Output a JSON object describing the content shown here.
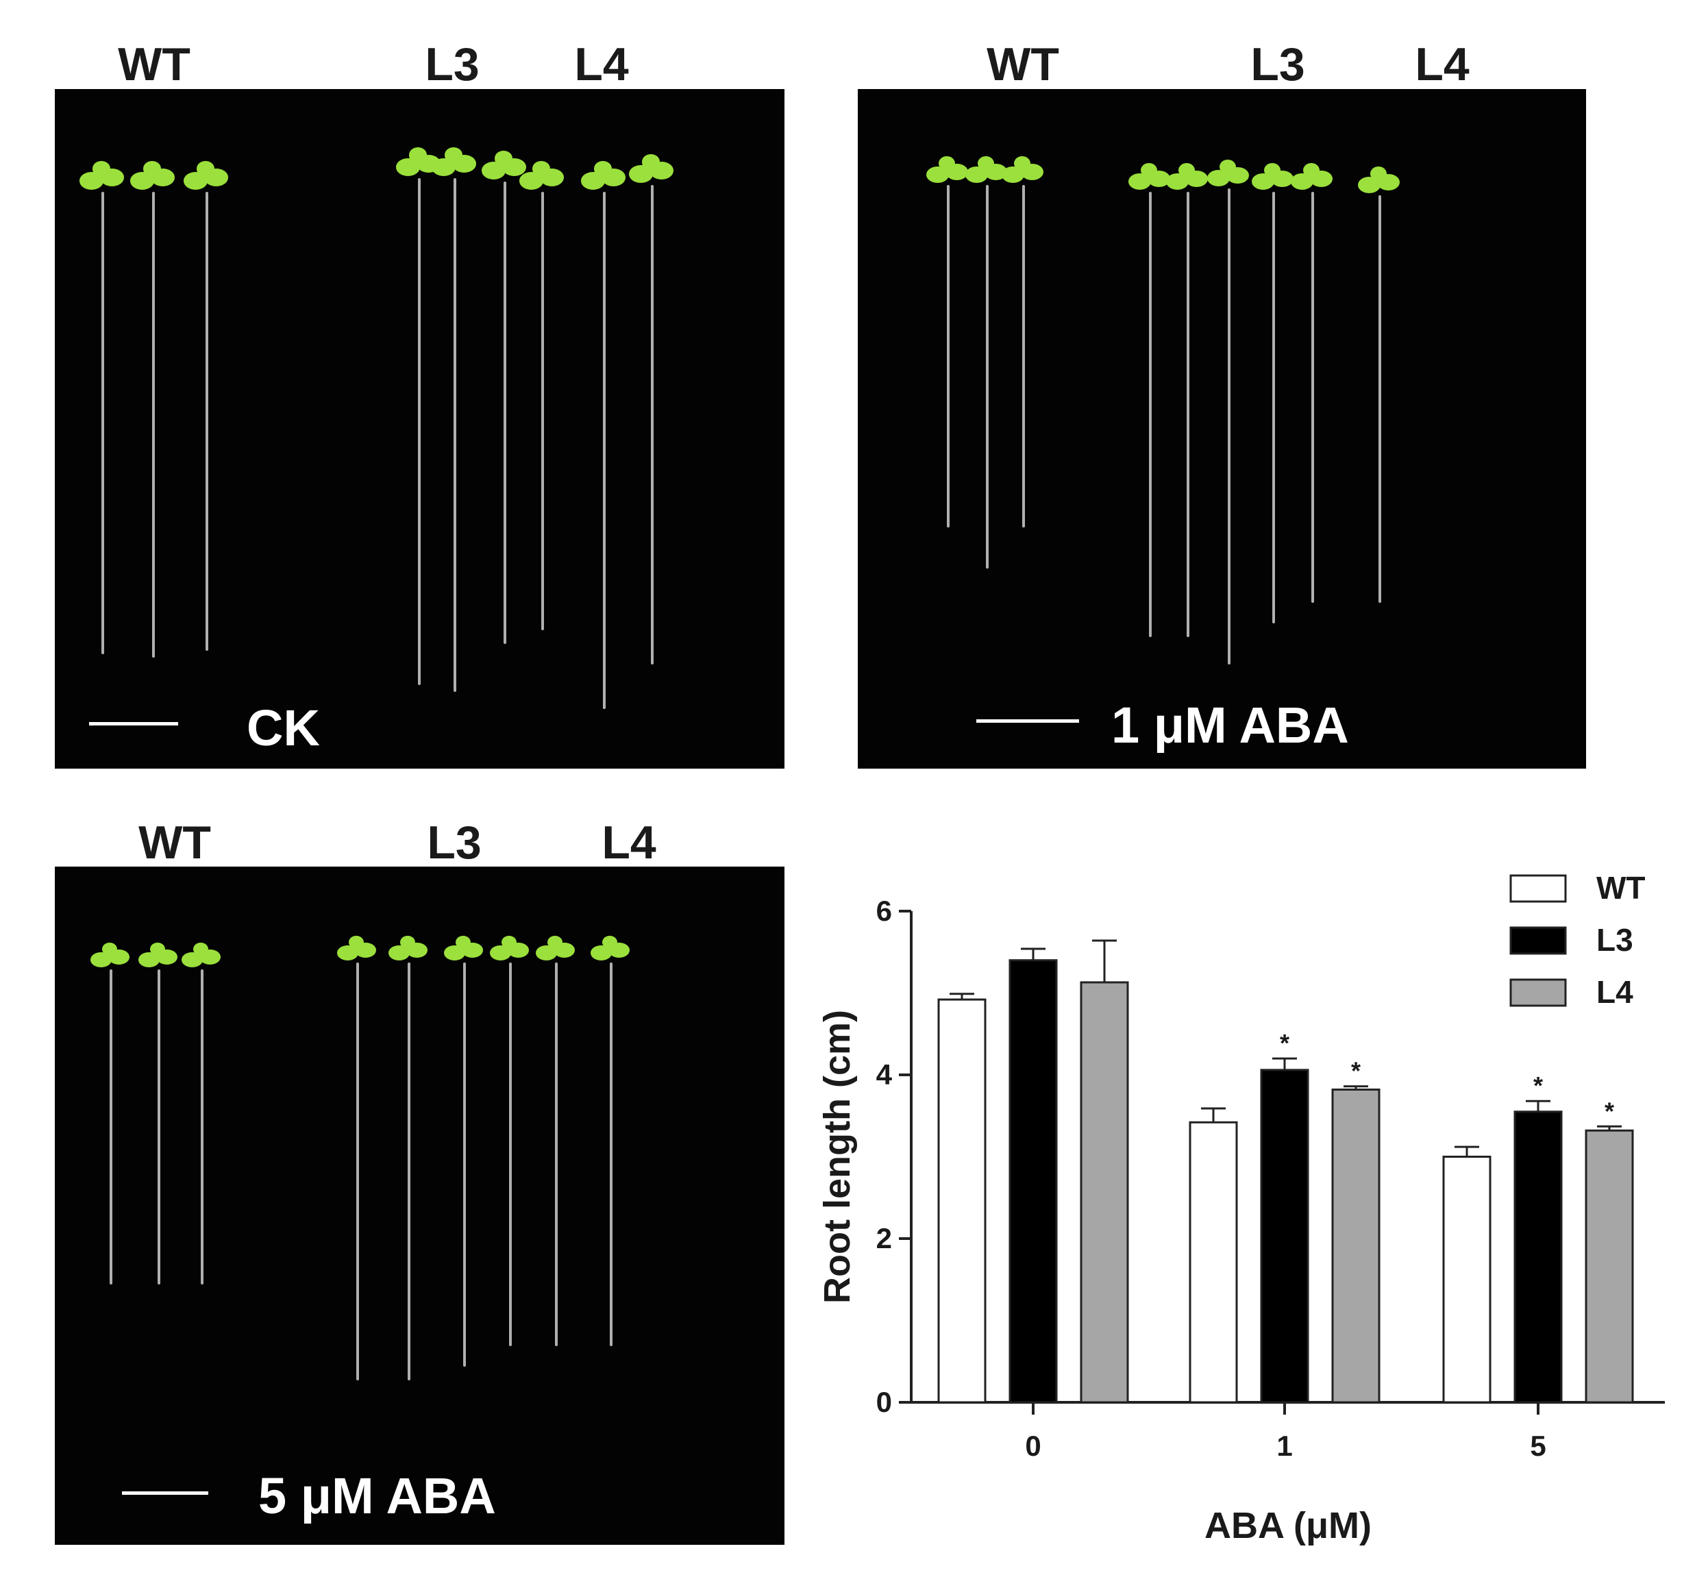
{
  "panels": [
    {
      "id": "ck",
      "caption": "CK",
      "column_labels": [
        "WT",
        "L3",
        "L4"
      ]
    },
    {
      "id": "aba1",
      "caption": "1 μM ABA",
      "column_labels": [
        "WT",
        "L3",
        "L4"
      ]
    },
    {
      "id": "aba5",
      "caption": "5 μM ABA",
      "column_labels": [
        "WT",
        "L3",
        "L4"
      ]
    }
  ],
  "colors": {
    "photo_background": "#030303",
    "leaf_green": "#9be03c",
    "root_color": "#cfcfcf",
    "wt_fill": "#ffffff",
    "l3_fill": "#000000",
    "l4_fill": "#a6a6a6"
  },
  "chart_data": {
    "type": "bar",
    "xlabel": "ABA (μM)",
    "ylabel": "Root length (cm)",
    "categories": [
      "0",
      "1",
      "5"
    ],
    "ylim": [
      0,
      6
    ],
    "yticks": [
      "0",
      "2",
      "4",
      "6"
    ],
    "legend_position": "top-right",
    "series": [
      {
        "name": "WT",
        "color": "#ffffff",
        "values": [
          4.92,
          3.42,
          3.0
        ],
        "errors": [
          0.07,
          0.17,
          0.12
        ],
        "significant": [
          false,
          false,
          false
        ]
      },
      {
        "name": "L3",
        "color": "#000000",
        "values": [
          5.4,
          4.06,
          3.55
        ],
        "errors": [
          0.14,
          0.14,
          0.13
        ],
        "significant": [
          false,
          true,
          true
        ]
      },
      {
        "name": "L4",
        "color": "#a6a6a6",
        "values": [
          5.13,
          3.82,
          3.32
        ],
        "errors": [
          0.51,
          0.04,
          0.05
        ],
        "significant": [
          false,
          true,
          true
        ]
      }
    ],
    "significance_mark": "*"
  }
}
